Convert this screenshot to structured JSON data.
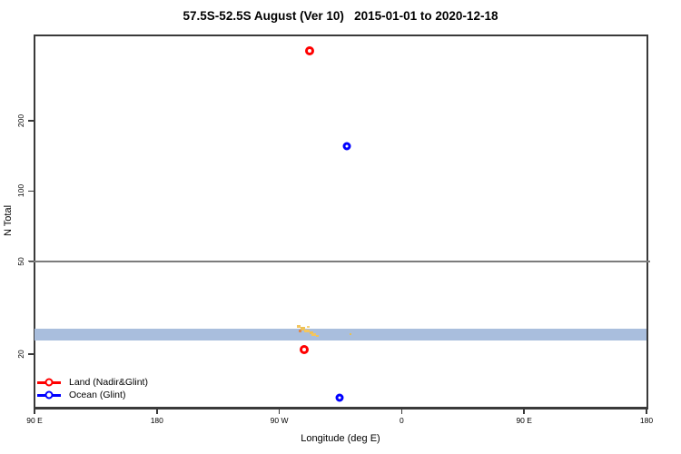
{
  "title": "57.5S-52.5S August (Ver 10)   2015-01-01 to 2020-12-18",
  "chart_data": {
    "type": "scatter",
    "title": "57.5S-52.5S August (Ver 10)   2015-01-01 to 2020-12-18",
    "xlabel": "Longitude (deg E)",
    "ylabel": "N Total",
    "x_axis": {
      "range_deg": [
        90,
        540
      ],
      "ticks": [
        {
          "deg": 90,
          "label": "90 E"
        },
        {
          "deg": 180,
          "label": "180"
        },
        {
          "deg": 270,
          "label": "90 W"
        },
        {
          "deg": 360,
          "label": "0"
        },
        {
          "deg": 450,
          "label": "90 E"
        },
        {
          "deg": 540,
          "label": "180"
        }
      ]
    },
    "y_axis": {
      "scale": "log",
      "range": [
        11.9,
        464
      ],
      "ticks": [
        {
          "value": 20,
          "label": "20"
        },
        {
          "value": 50,
          "label": "50"
        },
        {
          "value": 100,
          "label": "100"
        },
        {
          "value": 200,
          "label": "200"
        }
      ]
    },
    "series": [
      {
        "name": "Land (Nadir&Glint)",
        "color": "#ff0000",
        "marker": "open-circle",
        "marker_size_px": 10,
        "marker_stroke_px": 3,
        "points": [
          {
            "lon_deg_e": 292,
            "lon_display": "68 W",
            "n_total": 400
          },
          {
            "lon_deg_e": 288,
            "lon_display": "72 W",
            "n_total": 21
          }
        ]
      },
      {
        "name": "Ocean (Glint)",
        "color": "#0000ff",
        "marker": "open-circle",
        "marker_size_px": 9,
        "marker_stroke_px": 3,
        "points": [
          {
            "lon_deg_e": 320,
            "lon_display": "40 W",
            "n_total": 155
          },
          {
            "lon_deg_e": 314,
            "lon_display": "46 W",
            "n_total": 13
          }
        ]
      }
    ],
    "reference_line": {
      "n_total": 50,
      "color": "#7c7c7c"
    },
    "band": {
      "n_total_min": 22.8,
      "n_total_max": 25.6,
      "color": "#a9bedd",
      "spans": "all longitudes"
    },
    "specks": [
      {
        "lon_deg_e": 284.3,
        "n_total": 26.2,
        "w": 4,
        "h": 3,
        "color": "#f3c65f"
      },
      {
        "lon_deg_e": 287.0,
        "n_total": 25.7,
        "w": 5,
        "h": 4,
        "color": "#eec257"
      },
      {
        "lon_deg_e": 285.6,
        "n_total": 25.2,
        "w": 3,
        "h": 3,
        "color": "#e0884a"
      },
      {
        "lon_deg_e": 290.3,
        "n_total": 25.2,
        "w": 6,
        "h": 3,
        "color": "#f3c65f"
      },
      {
        "lon_deg_e": 291.6,
        "n_total": 26.2,
        "w": 3,
        "h": 2,
        "color": "#f7d47c"
      },
      {
        "lon_deg_e": 293.6,
        "n_total": 24.7,
        "w": 4,
        "h": 3,
        "color": "#efc055"
      },
      {
        "lon_deg_e": 295.6,
        "n_total": 24.3,
        "w": 5,
        "h": 3,
        "color": "#f3c65f"
      },
      {
        "lon_deg_e": 298.3,
        "n_total": 23.9,
        "w": 3,
        "h": 2,
        "color": "#f0c35c"
      },
      {
        "lon_deg_e": 322.4,
        "n_total": 24.3,
        "w": 2,
        "h": 2,
        "color": "#e8c050"
      }
    ],
    "legend": {
      "position": "bottom-left",
      "items": [
        {
          "label": "Land (Nadir&Glint)",
          "color": "#ff0000"
        },
        {
          "label": "Ocean (Glint)",
          "color": "#0000ff"
        }
      ]
    },
    "grid": "off"
  },
  "colors": {
    "axis": "#3a3a3a",
    "reference_line": "#7c7c7c",
    "band": "#a9bedd",
    "land": "#ff0000",
    "ocean": "#0000ff",
    "background": "#ffffff"
  }
}
